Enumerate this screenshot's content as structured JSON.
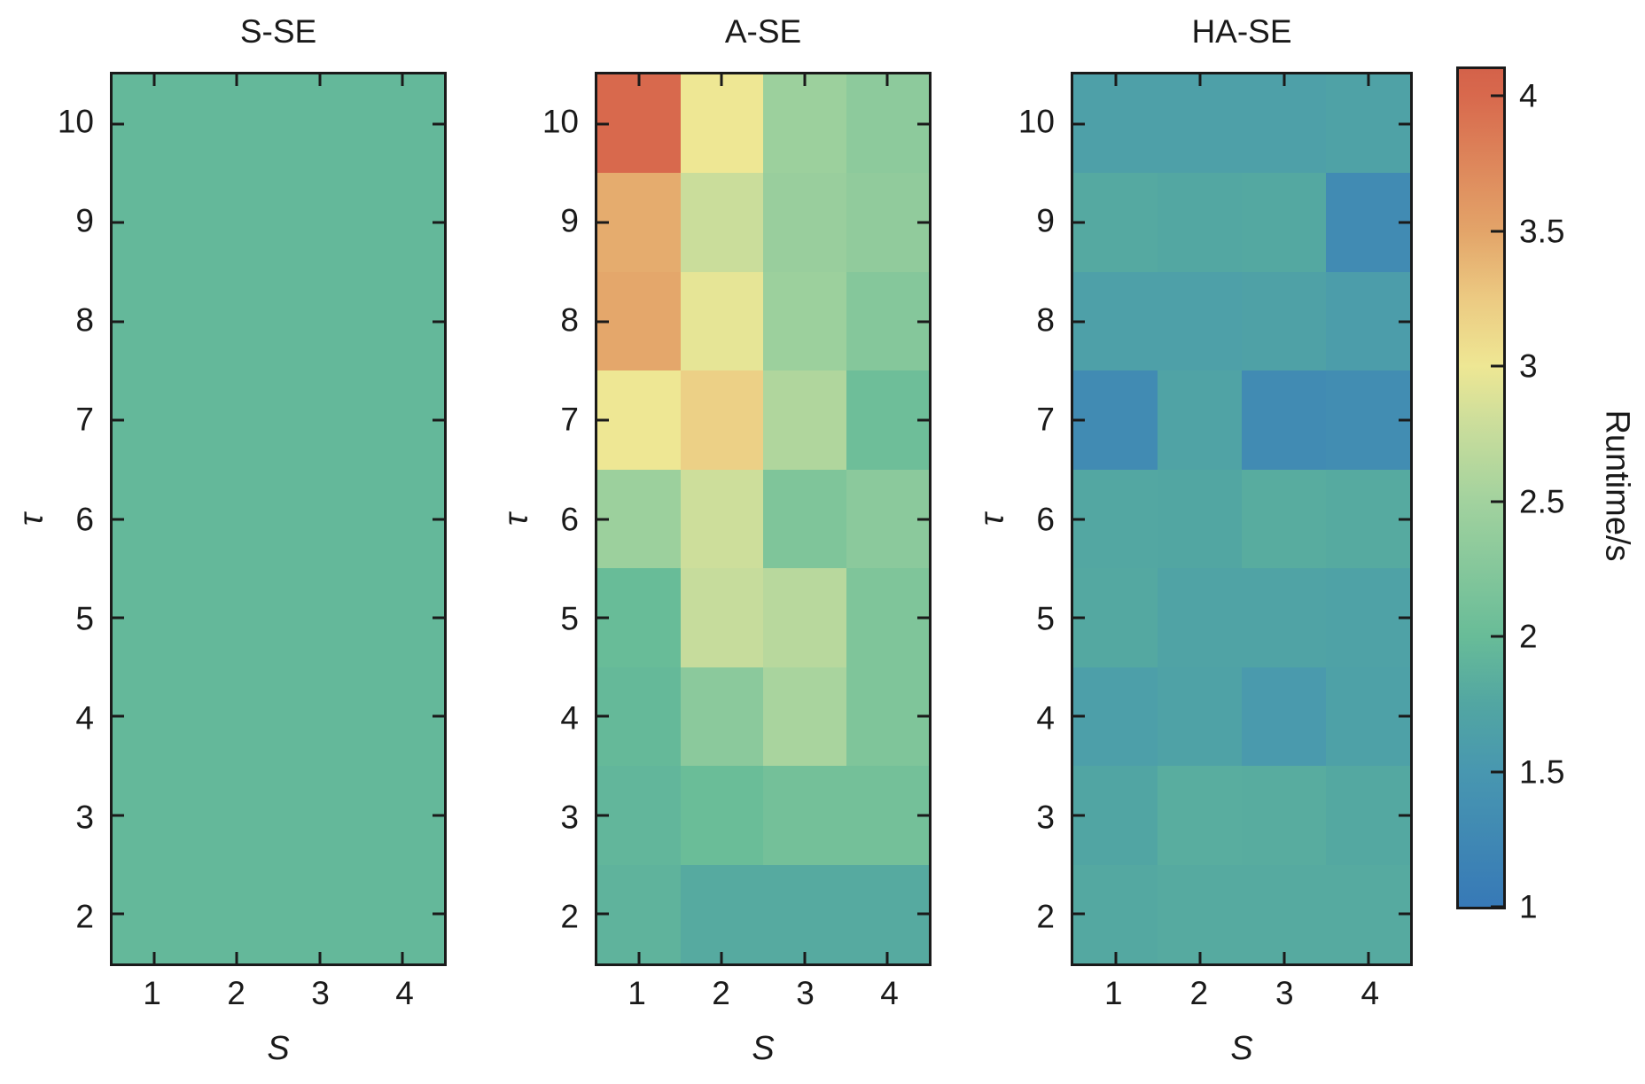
{
  "figure": {
    "background": "#ffffff",
    "text_color": "#1a1a1a",
    "xlabel": "S",
    "ylabel": "τ",
    "panels": [
      {
        "title": "S-SE"
      },
      {
        "title": "A-SE"
      },
      {
        "title": "HA-SE"
      }
    ],
    "colorbar": {
      "label": "Runtime/s",
      "vmin": 1.0,
      "vmax": 4.1,
      "ticks": [
        "4",
        "3.5",
        "3",
        "2.5",
        "2",
        "1.5",
        "1"
      ],
      "tick_values": [
        4,
        3.5,
        3,
        2.5,
        2,
        1.5,
        1
      ],
      "colormap_stops": [
        [
          1.0,
          "#3779b7"
        ],
        [
          1.5,
          "#4897b0"
        ],
        [
          1.75,
          "#52a6a2"
        ],
        [
          2.0,
          "#68bc98"
        ],
        [
          2.5,
          "#a2d29e"
        ],
        [
          2.8,
          "#cdde9b"
        ],
        [
          3.0,
          "#eee794"
        ],
        [
          3.25,
          "#ecca82"
        ],
        [
          3.5,
          "#e3a469"
        ],
        [
          4.0,
          "#d8694d"
        ],
        [
          4.1,
          "#d4624a"
        ]
      ]
    }
  },
  "chart_data": [
    {
      "type": "heatmap",
      "title": "S-SE",
      "xlabel": "S",
      "ylabel": "τ",
      "colorbar_label": "Runtime/s",
      "x": [
        1,
        2,
        3,
        4
      ],
      "y": [
        10,
        9,
        8,
        7,
        6,
        5,
        4,
        3,
        2
      ],
      "vmin": 1.0,
      "vmax": 4.1,
      "values": [
        [
          1.95,
          1.95,
          1.95,
          1.95
        ],
        [
          1.95,
          1.95,
          1.95,
          1.95
        ],
        [
          1.95,
          1.95,
          1.95,
          1.95
        ],
        [
          1.95,
          1.95,
          1.95,
          1.95
        ],
        [
          1.95,
          1.95,
          1.95,
          1.95
        ],
        [
          1.95,
          1.95,
          1.95,
          1.95
        ],
        [
          1.95,
          1.95,
          1.95,
          1.95
        ],
        [
          1.95,
          1.95,
          1.95,
          1.95
        ],
        [
          1.95,
          1.95,
          1.95,
          1.95
        ]
      ]
    },
    {
      "type": "heatmap",
      "title": "A-SE",
      "xlabel": "S",
      "ylabel": "τ",
      "colorbar_label": "Runtime/s",
      "x": [
        1,
        2,
        3,
        4
      ],
      "y": [
        10,
        9,
        8,
        7,
        6,
        5,
        4,
        3,
        2
      ],
      "vmin": 1.0,
      "vmax": 4.1,
      "values": [
        [
          4.0,
          3.0,
          2.45,
          2.32
        ],
        [
          3.45,
          2.78,
          2.42,
          2.35
        ],
        [
          3.48,
          2.95,
          2.45,
          2.25
        ],
        [
          3.0,
          3.2,
          2.6,
          2.05
        ],
        [
          2.45,
          2.8,
          2.2,
          2.3
        ],
        [
          2.0,
          2.75,
          2.65,
          2.2
        ],
        [
          1.97,
          2.3,
          2.55,
          2.2
        ],
        [
          1.93,
          2.02,
          2.1,
          2.1
        ],
        [
          1.9,
          1.8,
          1.8,
          1.8
        ]
      ]
    },
    {
      "type": "heatmap",
      "title": "HA-SE",
      "xlabel": "S",
      "ylabel": "τ",
      "colorbar_label": "Runtime/s",
      "x": [
        1,
        2,
        3,
        4
      ],
      "y": [
        10,
        9,
        8,
        7,
        6,
        5,
        4,
        3,
        2
      ],
      "vmin": 1.0,
      "vmax": 4.1,
      "values": [
        [
          1.65,
          1.65,
          1.65,
          1.68
        ],
        [
          1.78,
          1.76,
          1.77,
          1.3
        ],
        [
          1.65,
          1.65,
          1.67,
          1.6
        ],
        [
          1.3,
          1.7,
          1.3,
          1.33
        ],
        [
          1.76,
          1.75,
          1.82,
          1.8
        ],
        [
          1.77,
          1.7,
          1.7,
          1.68
        ],
        [
          1.63,
          1.68,
          1.55,
          1.66
        ],
        [
          1.73,
          1.83,
          1.82,
          1.77
        ],
        [
          1.77,
          1.8,
          1.79,
          1.79
        ]
      ]
    }
  ]
}
